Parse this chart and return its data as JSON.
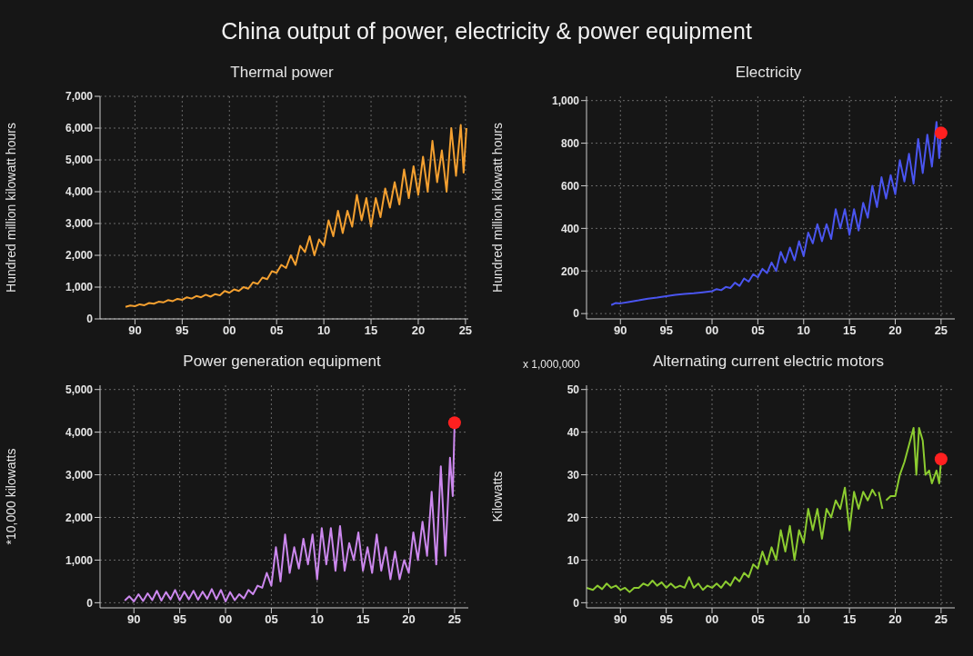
{
  "chart_data": [
    {
      "type": "line",
      "title": "Thermal power",
      "ylabel": "Hundred million kilowatt hours",
      "annotations": [
        "China output of power, electricity & power equipment"
      ],
      "grid": true,
      "xlim": [
        1986.3,
        2025.3
      ],
      "xticks": [
        {
          "value": 1990,
          "label": "90"
        },
        {
          "value": 1995,
          "label": "95"
        },
        {
          "value": 2000,
          "label": "00"
        },
        {
          "value": 2005,
          "label": "05"
        },
        {
          "value": 2010,
          "label": "10"
        },
        {
          "value": 2015,
          "label": "15"
        },
        {
          "value": 2020,
          "label": "20"
        },
        {
          "value": 2025,
          "label": "25"
        }
      ],
      "ylim": [
        0,
        7000
      ],
      "yticks": [
        0,
        {
          "value": 1000,
          "label": "1,000"
        },
        {
          "value": 2000,
          "label": "2,000"
        },
        {
          "value": 3000,
          "label": "3,000"
        },
        {
          "value": 4000,
          "label": "4,000"
        },
        {
          "value": 5000,
          "label": "5,000"
        },
        {
          "value": 6000,
          "label": "6,000"
        },
        {
          "value": 7000,
          "label": "7,000"
        }
      ],
      "series": [
        {
          "type": "line",
          "color": "#f4a030",
          "x": [
            1989.0,
            1989.5,
            1990.0,
            1990.5,
            1991.0,
            1991.5,
            1992.0,
            1992.5,
            1993.0,
            1993.5,
            1994.0,
            1994.5,
            1995.0,
            1995.5,
            1996.0,
            1996.5,
            1997.0,
            1997.5,
            1998.0,
            1998.5,
            1999.0,
            1999.5,
            2000.0,
            2000.5,
            2001.0,
            2001.5,
            2002.0,
            2002.5,
            2003.0,
            2003.5,
            2004.0,
            2004.5,
            2005.0,
            2005.5,
            2006.0,
            2006.5,
            2007.0,
            2007.5,
            2008.0,
            2008.5,
            2009.0,
            2009.5,
            2010.0,
            2010.5,
            2011.0,
            2011.5,
            2012.0,
            2012.5,
            2013.0,
            2013.5,
            2014.0,
            2014.5,
            2015.0,
            2015.5,
            2016.0,
            2016.5,
            2017.0,
            2017.5,
            2018.0,
            2018.5,
            2019.0,
            2019.5,
            2020.0,
            2020.5,
            2021.0,
            2021.5,
            2022.0,
            2022.5,
            2023.0,
            2023.5,
            2024.0,
            2024.5,
            2024.8,
            2025.1
          ],
          "values": [
            380,
            420,
            400,
            460,
            430,
            500,
            480,
            540,
            520,
            590,
            560,
            630,
            600,
            680,
            640,
            720,
            680,
            760,
            700,
            780,
            740,
            880,
            820,
            930,
            880,
            1000,
            950,
            1150,
            1100,
            1300,
            1250,
            1500,
            1450,
            1700,
            1600,
            2000,
            1700,
            2300,
            2100,
            2600,
            2000,
            2500,
            2300,
            3100,
            2600,
            3400,
            2700,
            3400,
            2900,
            3900,
            3100,
            3800,
            2900,
            3800,
            3200,
            4100,
            3500,
            4300,
            3600,
            4700,
            3800,
            4800,
            3900,
            5100,
            4000,
            5600,
            4300,
            5300,
            4000,
            6000,
            4500,
            6100,
            4600,
            6000
          ]
        }
      ]
    },
    {
      "type": "line",
      "title": "Electricity",
      "ylabel": "Hundred million kilowatt hours",
      "grid": true,
      "xlim": [
        1986.3,
        2026.5
      ],
      "xticks": [
        {
          "value": 1990,
          "label": "90"
        },
        {
          "value": 1995,
          "label": "95"
        },
        {
          "value": 2000,
          "label": "00"
        },
        {
          "value": 2005,
          "label": "05"
        },
        {
          "value": 2010,
          "label": "10"
        },
        {
          "value": 2015,
          "label": "15"
        },
        {
          "value": 2020,
          "label": "20"
        },
        {
          "value": 2025,
          "label": "25"
        }
      ],
      "ylim": [
        -25,
        1020
      ],
      "yticks": [
        0,
        200,
        400,
        600,
        800,
        {
          "value": 1000,
          "label": "1,000"
        }
      ],
      "series": [
        {
          "type": "line",
          "color": "#4a55f0",
          "x": [
            1989.0,
            1989.5,
            1990.0,
            1991.0,
            1992.0,
            1993.0,
            1994.0,
            1995.0,
            1996.0,
            1997.0,
            1998.0,
            1999.0,
            2000.0,
            2000.5,
            2001.0,
            2001.5,
            2002.0,
            2002.5,
            2003.0,
            2003.5,
            2004.0,
            2004.5,
            2005.0,
            2005.5,
            2006.0,
            2006.5,
            2007.0,
            2007.5,
            2008.0,
            2008.5,
            2009.0,
            2009.5,
            2010.0,
            2010.5,
            2011.0,
            2011.5,
            2012.0,
            2012.5,
            2013.0,
            2013.5,
            2014.0,
            2014.5,
            2015.0,
            2015.5,
            2016.0,
            2016.5,
            2017.0,
            2017.5,
            2018.0,
            2018.5,
            2019.0,
            2019.5,
            2020.0,
            2020.5,
            2021.0,
            2021.5,
            2022.0,
            2022.5,
            2023.0,
            2023.5,
            2024.0,
            2024.5,
            2024.8,
            2025.0
          ],
          "values": [
            40,
            50,
            48,
            55,
            62,
            70,
            75,
            82,
            88,
            92,
            95,
            100,
            105,
            115,
            110,
            125,
            120,
            145,
            130,
            165,
            150,
            185,
            170,
            210,
            190,
            240,
            200,
            290,
            240,
            310,
            250,
            340,
            270,
            380,
            330,
            420,
            340,
            420,
            350,
            490,
            400,
            490,
            370,
            490,
            390,
            520,
            450,
            600,
            500,
            640,
            540,
            650,
            560,
            720,
            620,
            750,
            610,
            820,
            660,
            840,
            690,
            900,
            730,
            848
          ]
        },
        {
          "type": "scatter",
          "color": "#ff2020",
          "x": [
            2025.0
          ],
          "values": [
            848
          ]
        }
      ]
    },
    {
      "type": "line",
      "title": "Power generation equipment",
      "ylabel": "*10,000 kilowatts",
      "grid": true,
      "xlim": [
        1986.3,
        2026.5
      ],
      "xticks": [
        {
          "value": 1990,
          "label": "90"
        },
        {
          "value": 1995,
          "label": "95"
        },
        {
          "value": 2000,
          "label": "00"
        },
        {
          "value": 2005,
          "label": "05"
        },
        {
          "value": 2010,
          "label": "10"
        },
        {
          "value": 2015,
          "label": "15"
        },
        {
          "value": 2020,
          "label": "20"
        },
        {
          "value": 2025,
          "label": "25"
        }
      ],
      "ylim": [
        -120,
        5100
      ],
      "yticks": [
        0,
        {
          "value": 1000,
          "label": "1,000"
        },
        {
          "value": 2000,
          "label": "2,000"
        },
        {
          "value": 3000,
          "label": "3,000"
        },
        {
          "value": 4000,
          "label": "4,000"
        },
        {
          "value": 5000,
          "label": "5,000"
        }
      ],
      "series": [
        {
          "type": "line",
          "color": "#cc88ee",
          "x": [
            1989.0,
            1989.5,
            1990.0,
            1990.5,
            1991.0,
            1991.5,
            1992.0,
            1992.5,
            1993.0,
            1993.5,
            1994.0,
            1994.5,
            1995.0,
            1995.5,
            1996.0,
            1996.5,
            1997.0,
            1997.5,
            1998.0,
            1998.5,
            1999.0,
            1999.5,
            2000.0,
            2000.5,
            2001.0,
            2001.5,
            2002.0,
            2002.5,
            2003.0,
            2003.5,
            2004.0,
            2004.5,
            2005.0,
            2005.5,
            2006.0,
            2006.5,
            2007.0,
            2007.5,
            2008.0,
            2008.5,
            2009.0,
            2009.5,
            2010.0,
            2010.5,
            2011.0,
            2011.5,
            2012.0,
            2012.5,
            2013.0,
            2013.5,
            2014.0,
            2014.5,
            2015.0,
            2015.5,
            2016.0,
            2016.5,
            2017.0,
            2017.5,
            2018.0,
            2018.5,
            2019.0,
            2019.5,
            2020.0,
            2020.5,
            2021.0,
            2021.5,
            2022.0,
            2022.5,
            2023.0,
            2023.5,
            2024.0,
            2024.5,
            2024.8,
            2025.0
          ],
          "values": [
            50,
            150,
            30,
            200,
            40,
            220,
            60,
            280,
            50,
            250,
            80,
            300,
            60,
            260,
            80,
            280,
            70,
            260,
            90,
            320,
            80,
            300,
            30,
            250,
            60,
            200,
            100,
            300,
            200,
            400,
            350,
            700,
            400,
            1300,
            500,
            1600,
            700,
            1300,
            800,
            1500,
            900,
            1600,
            550,
            1750,
            900,
            1750,
            750,
            1800,
            750,
            1400,
            1000,
            1650,
            750,
            1300,
            700,
            1600,
            750,
            1300,
            550,
            1200,
            550,
            1000,
            700,
            1650,
            1000,
            1900,
            1100,
            2600,
            900,
            3200,
            1100,
            3400,
            2500,
            4200
          ]
        },
        {
          "type": "scatter",
          "color": "#ff2020",
          "x": [
            2025.0
          ],
          "values": [
            4220
          ]
        }
      ]
    },
    {
      "type": "line",
      "title": "Alternating current electric motors",
      "ylabel": "Kilowatts",
      "annotations": [
        "x 1,000,000"
      ],
      "grid": true,
      "xlim": [
        1986.3,
        2026.5
      ],
      "xticks": [
        {
          "value": 1990,
          "label": "90"
        },
        {
          "value": 1995,
          "label": "95"
        },
        {
          "value": 2000,
          "label": "00"
        },
        {
          "value": 2005,
          "label": "05"
        },
        {
          "value": 2010,
          "label": "10"
        },
        {
          "value": 2015,
          "label": "15"
        },
        {
          "value": 2020,
          "label": "20"
        },
        {
          "value": 2025,
          "label": "25"
        }
      ],
      "ylim": [
        -1.2,
        51
      ],
      "yticks": [
        0,
        10,
        20,
        30,
        40,
        50
      ],
      "series": [
        {
          "type": "line",
          "color": "#8ccc30",
          "x": [
            1986.3,
            1987.0,
            1987.5,
            1988.0,
            1988.5,
            1989.0,
            1989.5,
            1990.0,
            1990.5,
            1991.0,
            1991.5,
            1992.0,
            1992.5,
            1993.0,
            1993.5,
            1994.0,
            1994.5,
            1995.0,
            1995.5,
            1996.0,
            1996.5,
            1997.0,
            1997.5,
            1998.0,
            1998.5,
            1999.0,
            1999.5,
            2000.0,
            2000.5,
            2001.0,
            2001.5,
            2002.0,
            2002.5,
            2003.0,
            2003.5,
            2004.0,
            2004.5,
            2005.0,
            2005.5,
            2006.0,
            2006.5,
            2007.0,
            2007.5,
            2008.0,
            2008.5,
            2009.0,
            2009.5,
            2010.0,
            2010.5,
            2011.0,
            2011.5,
            2012.0,
            2012.5,
            2013.0,
            2013.5,
            2014.0,
            2014.5,
            2015.0,
            2015.5,
            2016.0,
            2016.5,
            2017.0,
            2017.5,
            2017.9,
            2018.0,
            2018.2,
            2018.6,
            2018.8,
            2019.0,
            2019.5,
            2020.0,
            2020.5,
            2021.0,
            2021.5,
            2022.0,
            2022.3,
            2022.6,
            2023.0,
            2023.3,
            2023.7,
            2024.0,
            2024.5,
            2024.8,
            2025.0
          ],
          "values": [
            3.5,
            3,
            4,
            3.2,
            4.5,
            3.5,
            4,
            3,
            3.5,
            2.5,
            3.5,
            3.5,
            4.5,
            4,
            5.2,
            4,
            4.8,
            3.5,
            4.5,
            3.5,
            4,
            3.5,
            6,
            3.5,
            4.5,
            3,
            4,
            3.5,
            4.5,
            3.5,
            5,
            4,
            6,
            5,
            7,
            6,
            9,
            8,
            12,
            9,
            13,
            10,
            17,
            12,
            18,
            10,
            17,
            14,
            22,
            17,
            22,
            15,
            22,
            20,
            24,
            22,
            27,
            17,
            26,
            22,
            26,
            24,
            26.5,
            25,
            null,
            26,
            22,
            null,
            24,
            25,
            25,
            30,
            33,
            37,
            41,
            30,
            41,
            38,
            30,
            31,
            28,
            31,
            28,
            33.5
          ]
        },
        {
          "type": "scatter",
          "color": "#ff2020",
          "x": [
            2025.0
          ],
          "values": [
            33.7
          ]
        }
      ]
    }
  ]
}
